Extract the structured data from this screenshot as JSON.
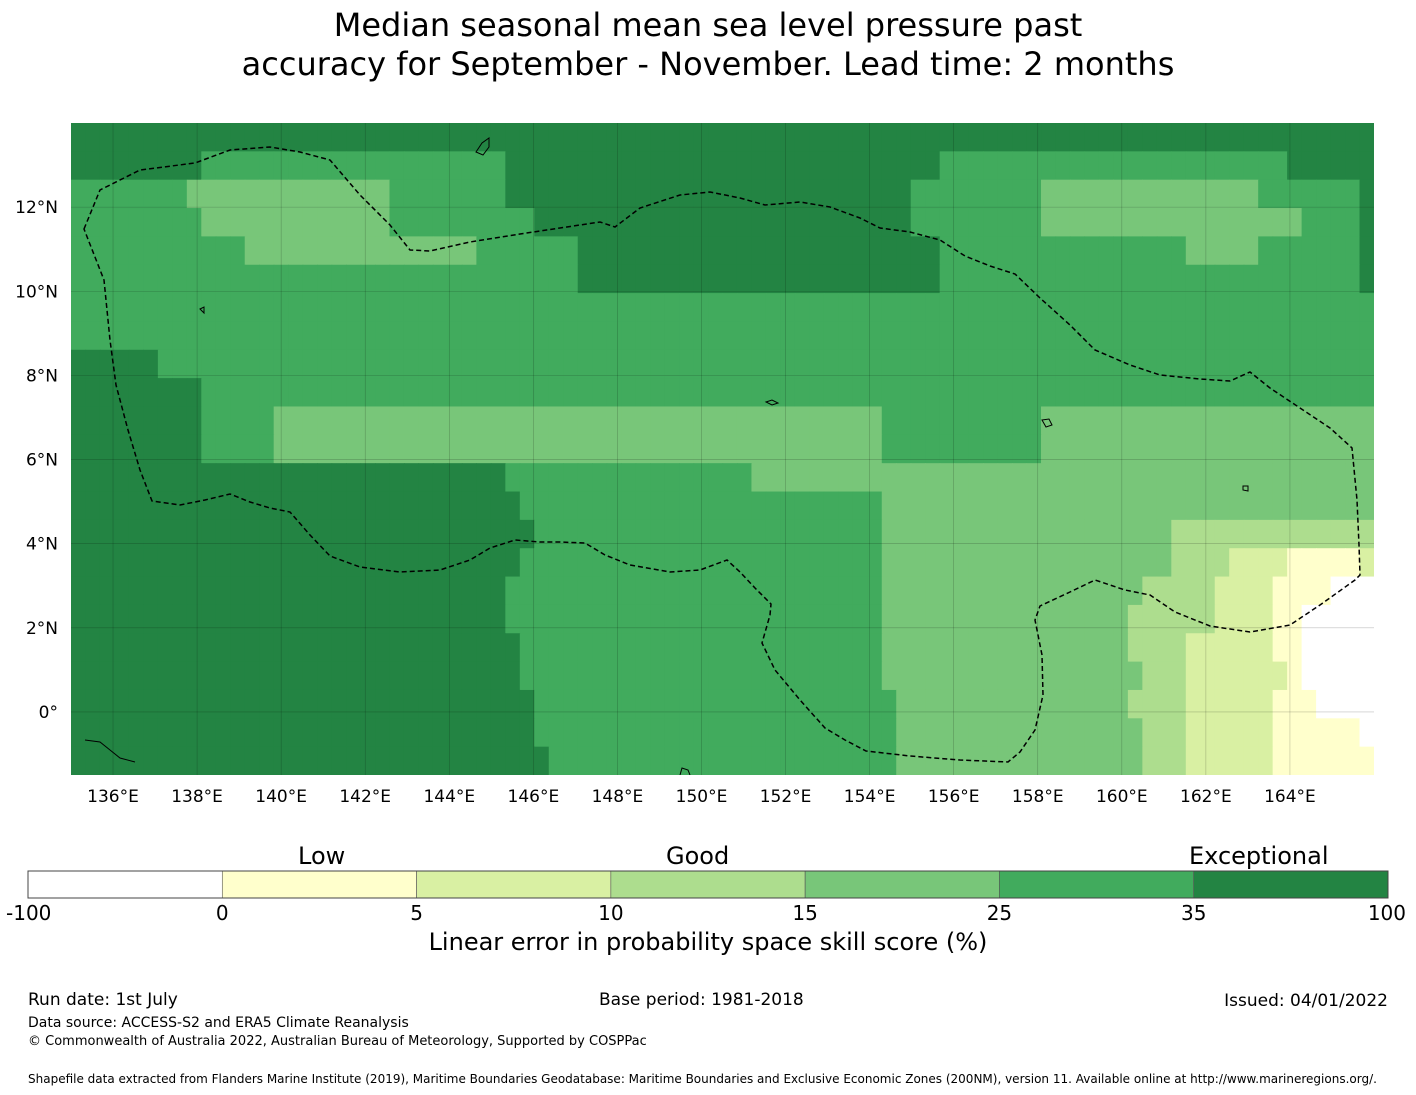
{
  "title_line1": "Median seasonal mean sea level pressure past",
  "title_line2": "accuracy for September - November. Lead time: 2 months",
  "map": {
    "lon_range": [
      135.0,
      166.0
    ],
    "lat_range": [
      -1.5,
      14.0
    ],
    "x_ticks": [
      "136°E",
      "138°E",
      "140°E",
      "142°E",
      "144°E",
      "146°E",
      "148°E",
      "150°E",
      "152°E",
      "154°E",
      "156°E",
      "158°E",
      "160°E",
      "162°E",
      "164°E"
    ],
    "x_tick_values": [
      136,
      138,
      140,
      142,
      144,
      146,
      148,
      150,
      152,
      154,
      156,
      158,
      160,
      162,
      164
    ],
    "y_ticks": [
      "12°N",
      "10°N",
      "8°N",
      "6°N",
      "4°N",
      "2°N",
      "0°"
    ],
    "y_tick_values": [
      12,
      10,
      8,
      6,
      4,
      2,
      0
    ],
    "grid": true
  },
  "colorbar": {
    "categories": [
      "Low",
      "Good",
      "Exceptional"
    ],
    "boundaries": [
      "-100",
      "0",
      "5",
      "10",
      "15",
      "25",
      "35",
      "100"
    ],
    "colors": [
      "#ffffff",
      "#ffffcc",
      "#d9f0a3",
      "#addd8e",
      "#78c679",
      "#41ab5d",
      "#238443"
    ],
    "label": "Linear error in probability space skill score (%)"
  },
  "footer": {
    "run_date": "Run date: 1st July",
    "base_period": "Base period: 1981-2018",
    "issued": "Issued: 04/01/2022",
    "data_source": "Data source: ACCESS-S2 and ERA5 Climate Reanalysis",
    "copyright": "© Commonwealth of Australia 2022, Australian Bureau of Meteorology, Supported by COSPPac",
    "shapefile": "Shapefile data extracted from Flanders Marine Institute (2019), Maritime Boundaries Geodatabase: Maritime Boundaries and Exclusive Economic Zones (200NM), version 11. Available online at http://www.marineregions.org/."
  }
}
